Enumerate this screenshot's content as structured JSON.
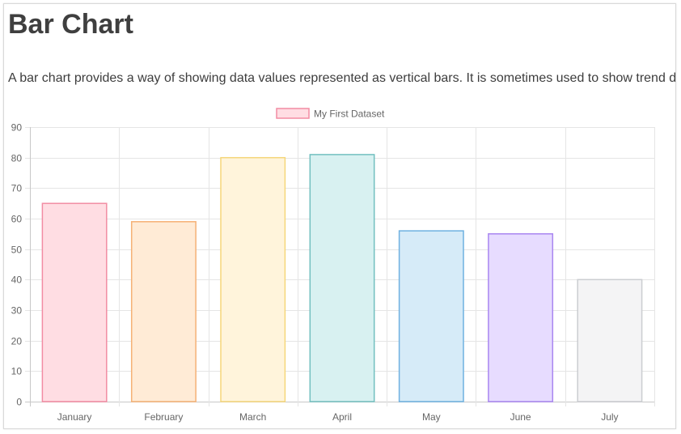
{
  "page": {
    "title": "Bar Chart",
    "description": "A bar chart provides a way of showing data values represented as vertical bars. It is sometimes used to show trend data, and the comparison of multiple data sets side by side."
  },
  "chart_data": {
    "type": "bar",
    "categories": [
      "January",
      "February",
      "March",
      "April",
      "May",
      "June",
      "July"
    ],
    "series": [
      {
        "name": "My First Dataset",
        "values": [
          65,
          59,
          80,
          81,
          56,
          55,
          40
        ],
        "fill_colors": [
          "#ffdde3",
          "#ffebd6",
          "#fff4db",
          "#d8f1f1",
          "#d6ebf8",
          "#e7dcff",
          "#f4f4f5"
        ],
        "border_colors": [
          "#f28ca3",
          "#f5b175",
          "#f5d67a",
          "#72c0c0",
          "#6fb1e0",
          "#a986f0",
          "#cbcdd1"
        ]
      }
    ],
    "ylim": [
      0,
      90
    ],
    "yticks": [
      0,
      10,
      20,
      30,
      40,
      50,
      60,
      70,
      80,
      90
    ],
    "grid": true,
    "legend_position": "top-center"
  }
}
